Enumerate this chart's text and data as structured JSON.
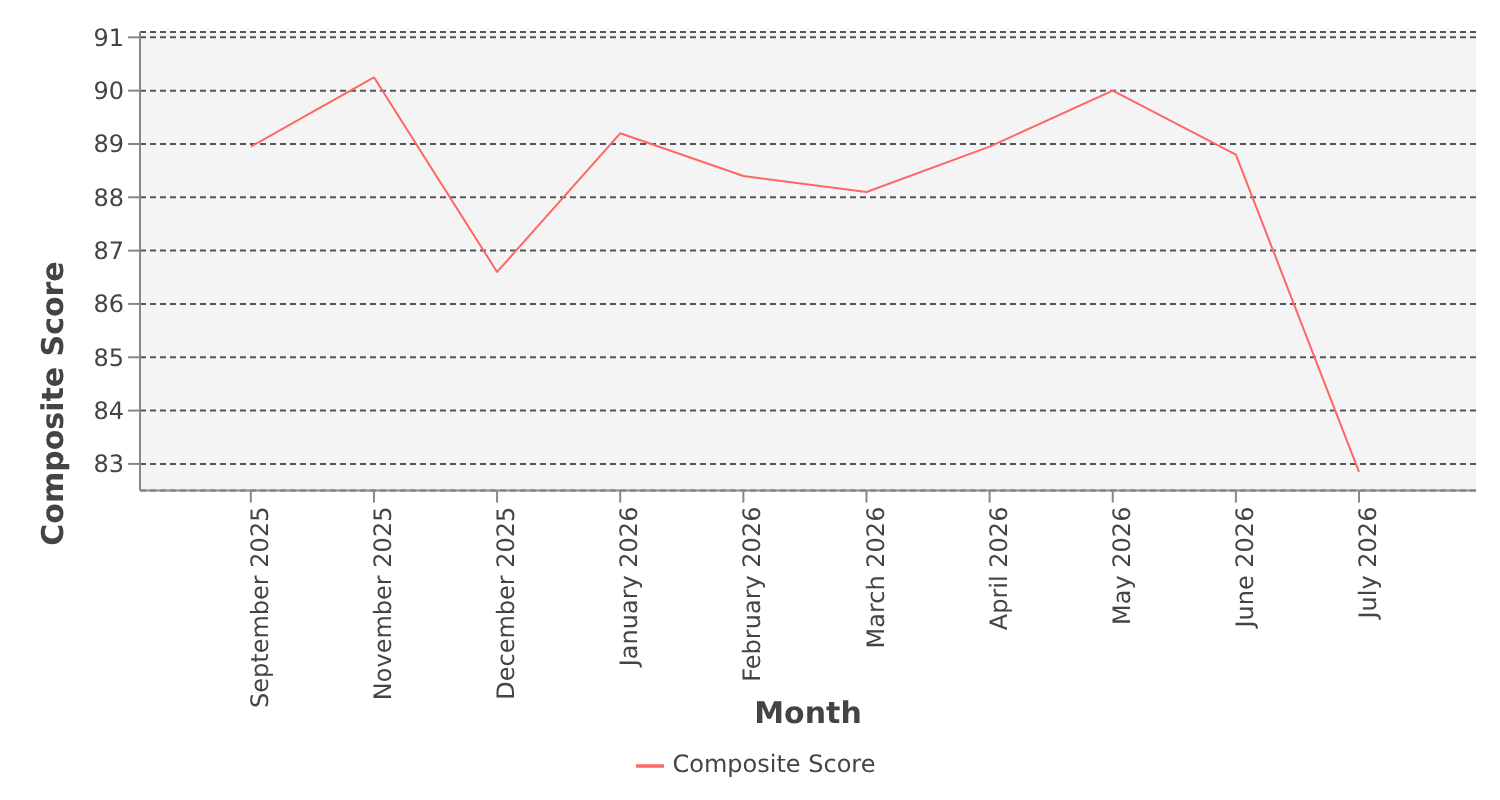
{
  "chart_data": {
    "type": "line",
    "xlabel": "Month",
    "ylabel": "Composite Score",
    "categories": [
      "September 2025",
      "November 2025",
      "December 2025",
      "January 2026",
      "February 2026",
      "March 2026",
      "April 2026",
      "May 2026",
      "June 2026",
      "July 2026"
    ],
    "series": [
      {
        "name": "Composite Score",
        "color": "#ff6666",
        "values": [
          88.95,
          90.25,
          86.6,
          89.2,
          88.4,
          88.1,
          88.95,
          90.0,
          88.8,
          82.85
        ]
      }
    ],
    "ylim": [
      82.5,
      91.1
    ],
    "yticks": [
      83,
      84,
      85,
      86,
      87,
      88,
      89,
      90,
      91
    ],
    "grid": "y",
    "legend": "bottom",
    "marker": "none",
    "line_style": "solid"
  }
}
